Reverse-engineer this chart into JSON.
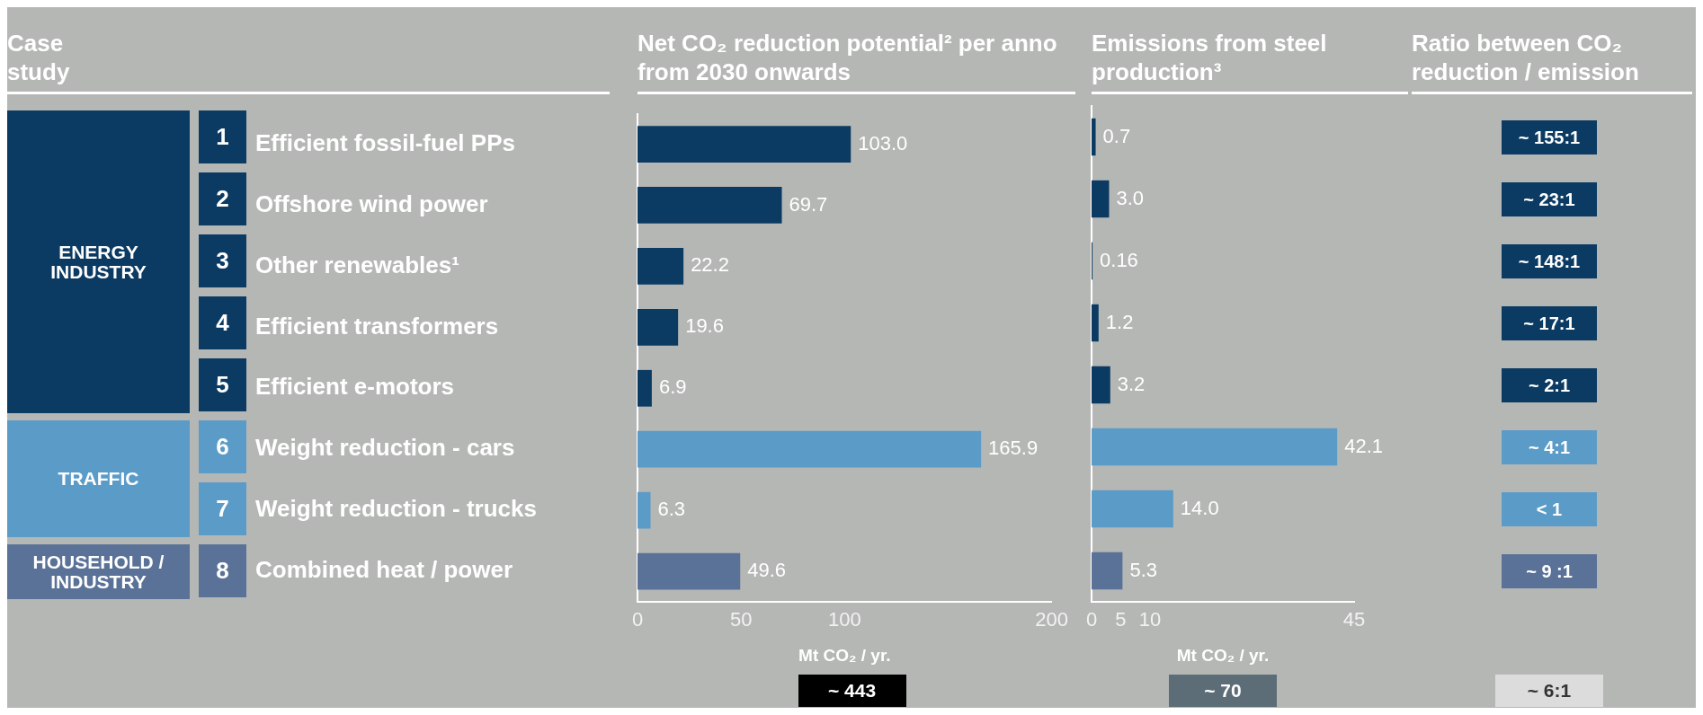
{
  "chart_data": [
    {
      "type": "other",
      "title": "Case study",
      "annotations": [
        {
          "text": "ENERGY INDUSTRY",
          "y": "Efficient fossil-fuel PPs"
        },
        {
          "text": "TRAFFIC",
          "y": "Weight reduction - cars"
        },
        {
          "text": "HOUSEHOLD / INDUSTRY",
          "y": "Combined heat / power"
        }
      ]
    },
    {
      "type": "bar",
      "orientation": "horizontal",
      "title": "Net CO₂ reduction potential² per anno from 2030 onwards",
      "xlabel": "Mt CO₂ / yr.",
      "categories": [
        "Efficient fossil-fuel PPs",
        "Offshore wind power",
        "Other renewables¹",
        "Efficient transformers",
        "Efficient e-motors",
        "Weight reduction - cars",
        "Weight reduction - trucks",
        "Combined heat / power"
      ],
      "values": [
        103.0,
        69.7,
        22.2,
        19.6,
        6.9,
        165.9,
        6.3,
        49.6
      ],
      "value_labels": [
        "103.0",
        "69.7",
        "22.2",
        "19.6",
        "6.9",
        "165.9",
        "6.3",
        "49.6"
      ],
      "colors": [
        "#0b3a62",
        "#0b3a62",
        "#0b3a62",
        "#0b3a62",
        "#0b3a62",
        "#5b9bc8",
        "#5b9bc8",
        "#5a7298"
      ],
      "xlim": [
        0,
        200
      ],
      "xticks": [
        0,
        50,
        100,
        200
      ],
      "annotations": [
        "1",
        "2",
        "3",
        "4",
        "5",
        "6",
        "7",
        "8",
        "~ 443"
      ]
    },
    {
      "type": "bar",
      "orientation": "horizontal",
      "title": "Emissions from steel production³",
      "xlabel": "Mt CO₂ / yr.",
      "values": [
        0.7,
        3.0,
        0.16,
        1.2,
        3.2,
        42.1,
        14.0,
        5.3
      ],
      "value_labels": [
        "0.7",
        "3.0",
        "0.16",
        "1.2",
        "3.2",
        "42.1",
        "14.0",
        "5.3"
      ],
      "colors": [
        "#0b3a62",
        "#0b3a62",
        "#0b3a62",
        "#0b3a62",
        "#0b3a62",
        "#5b9bc8",
        "#5b9bc8",
        "#5a7298"
      ],
      "xlim": [
        0,
        45
      ],
      "xticks": [
        0,
        5,
        10,
        45
      ],
      "tick_labels": "x",
      "annotations": [
        "~ 70"
      ]
    },
    {
      "type": "other",
      "title": "Ratio between CO₂ reduction / emission",
      "annotations": [
        "~ 155:1",
        "~ 23:1",
        "~ 148:1",
        "~ 17:1",
        "~ 2:1",
        "~ 4:1",
        "< 1",
        "~ 9 :1",
        "~ 6:1"
      ],
      "colors": [
        "#0b3a62",
        "#0b3a62",
        "#0b3a62",
        "#0b3a62",
        "#0b3a62",
        "#5b9bc8",
        "#5b9bc8",
        "#5a7298",
        "#dcdcdc"
      ]
    }
  ]
}
